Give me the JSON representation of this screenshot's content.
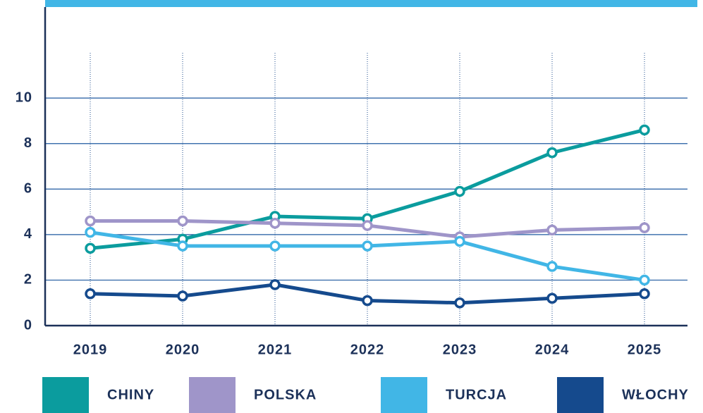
{
  "chart_data": {
    "type": "line",
    "x": [
      "2019",
      "2020",
      "2021",
      "2022",
      "2023",
      "2024",
      "2025"
    ],
    "series": [
      {
        "name": "CHINY",
        "color": "#0b9c9e",
        "values": [
          3.4,
          3.8,
          4.8,
          4.7,
          5.9,
          7.6,
          8.6
        ]
      },
      {
        "name": "POLSKA",
        "color": "#9f95c9",
        "values": [
          4.6,
          4.6,
          4.5,
          4.4,
          3.9,
          4.2,
          4.3
        ]
      },
      {
        "name": "TURCJA",
        "color": "#41b6e6",
        "values": [
          4.1,
          3.5,
          3.5,
          3.5,
          3.7,
          2.6,
          2.0
        ]
      },
      {
        "name": "WŁOCHY",
        "color": "#154a8d",
        "values": [
          1.4,
          1.3,
          1.8,
          1.1,
          1.0,
          1.2,
          1.4
        ]
      }
    ],
    "ylim": [
      0,
      14
    ],
    "yticks": [
      0,
      2,
      4,
      6,
      8,
      10
    ],
    "grid": true,
    "legend": "bottom"
  }
}
